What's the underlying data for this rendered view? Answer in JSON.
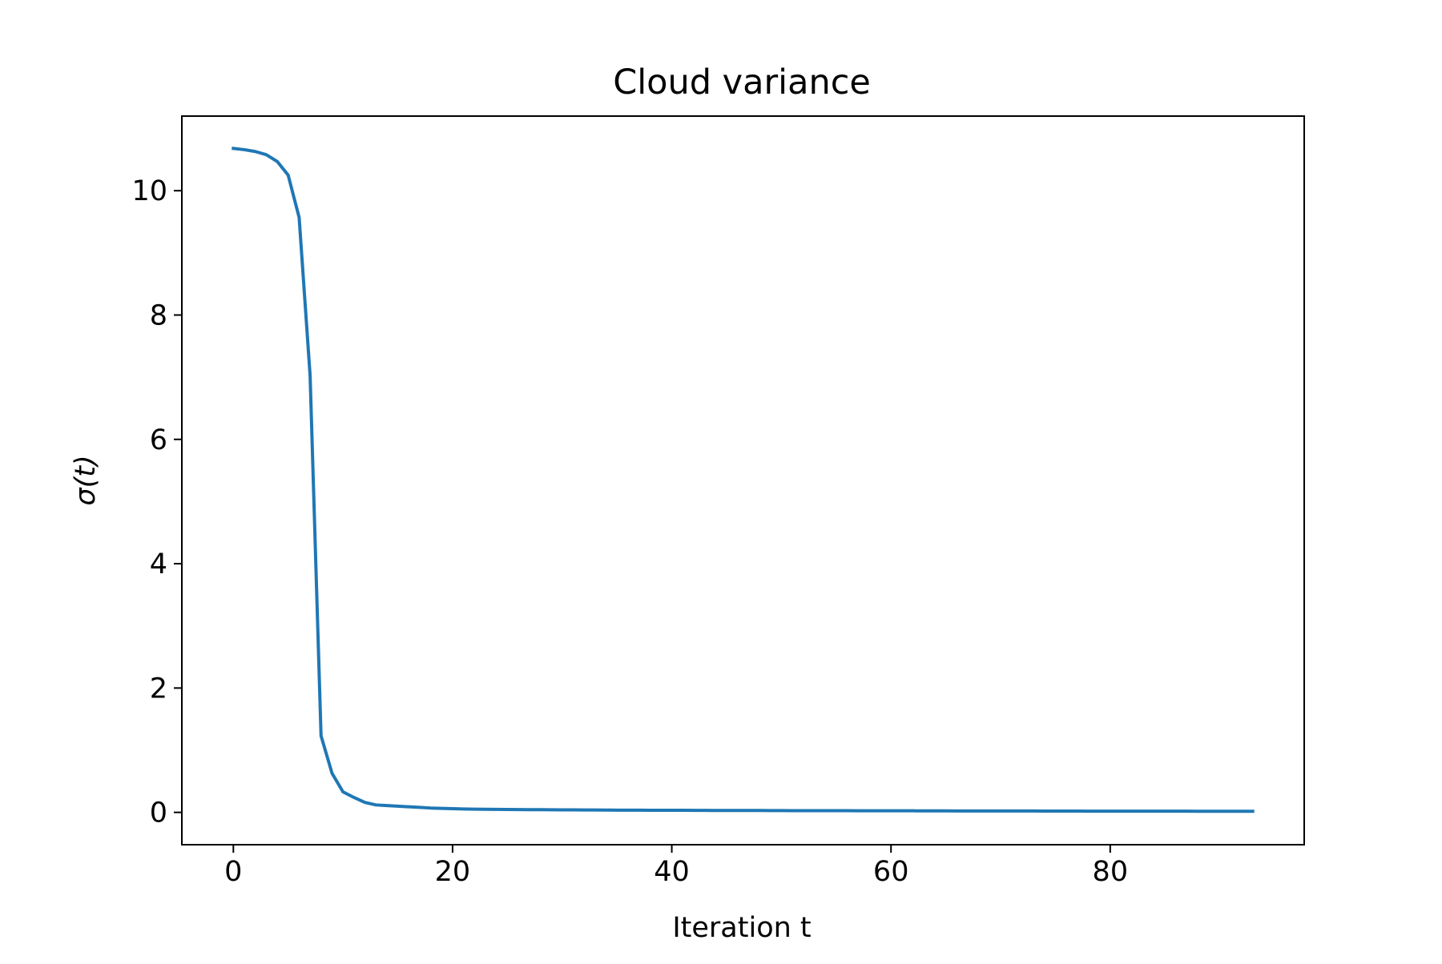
{
  "chart_data": {
    "type": "line",
    "title": "Cloud variance",
    "xlabel": "Iteration t",
    "ylabel": "σ(t)",
    "xlim": [
      -4.7,
      97.7
    ],
    "ylim": [
      -0.52,
      11.2
    ],
    "grid": false,
    "legend": "none",
    "x_ticks": [
      0,
      20,
      40,
      60,
      80
    ],
    "y_ticks": [
      0,
      2,
      4,
      6,
      8,
      10
    ],
    "x_tick_labels": [
      "0",
      "20",
      "40",
      "60",
      "80"
    ],
    "y_tick_labels": [
      "0",
      "2",
      "4",
      "6",
      "8",
      "10"
    ],
    "series": [
      {
        "color": "#1f77b4",
        "x": [
          0,
          1,
          2,
          3,
          4,
          5,
          6,
          7,
          8,
          9,
          10,
          11,
          12,
          13,
          14,
          15,
          16,
          17,
          18,
          19,
          20,
          21,
          22,
          23,
          24,
          25,
          26,
          27,
          28,
          29,
          30,
          31,
          32,
          33,
          34,
          35,
          36,
          37,
          38,
          39,
          40,
          41,
          42,
          43,
          44,
          45,
          46,
          47,
          48,
          49,
          50,
          51,
          52,
          53,
          54,
          55,
          56,
          57,
          58,
          59,
          60,
          61,
          62,
          63,
          64,
          65,
          66,
          67,
          68,
          69,
          70,
          71,
          72,
          73,
          74,
          75,
          76,
          77,
          78,
          79,
          80,
          81,
          82,
          83,
          84,
          85,
          86,
          87,
          88,
          89,
          90,
          91,
          92,
          93
        ],
        "y": [
          10.68,
          10.66,
          10.63,
          10.58,
          10.47,
          10.25,
          9.57,
          7.03,
          1.23,
          0.63,
          0.33,
          0.24,
          0.16,
          0.12,
          0.11,
          0.1,
          0.09,
          0.08,
          0.07,
          0.065,
          0.06,
          0.055,
          0.052,
          0.05,
          0.048,
          0.046,
          0.045,
          0.044,
          0.043,
          0.042,
          0.041,
          0.04,
          0.039,
          0.038,
          0.037,
          0.036,
          0.035,
          0.035,
          0.034,
          0.034,
          0.033,
          0.033,
          0.032,
          0.032,
          0.031,
          0.031,
          0.03,
          0.03,
          0.03,
          0.029,
          0.029,
          0.028,
          0.028,
          0.028,
          0.027,
          0.027,
          0.027,
          0.026,
          0.026,
          0.026,
          0.025,
          0.025,
          0.025,
          0.024,
          0.024,
          0.024,
          0.023,
          0.023,
          0.023,
          0.023,
          0.022,
          0.022,
          0.022,
          0.022,
          0.021,
          0.021,
          0.021,
          0.021,
          0.02,
          0.02,
          0.02,
          0.02,
          0.02,
          0.019,
          0.019,
          0.019,
          0.019,
          0.019,
          0.018,
          0.018,
          0.018,
          0.018,
          0.018,
          0.017
        ]
      }
    ]
  }
}
